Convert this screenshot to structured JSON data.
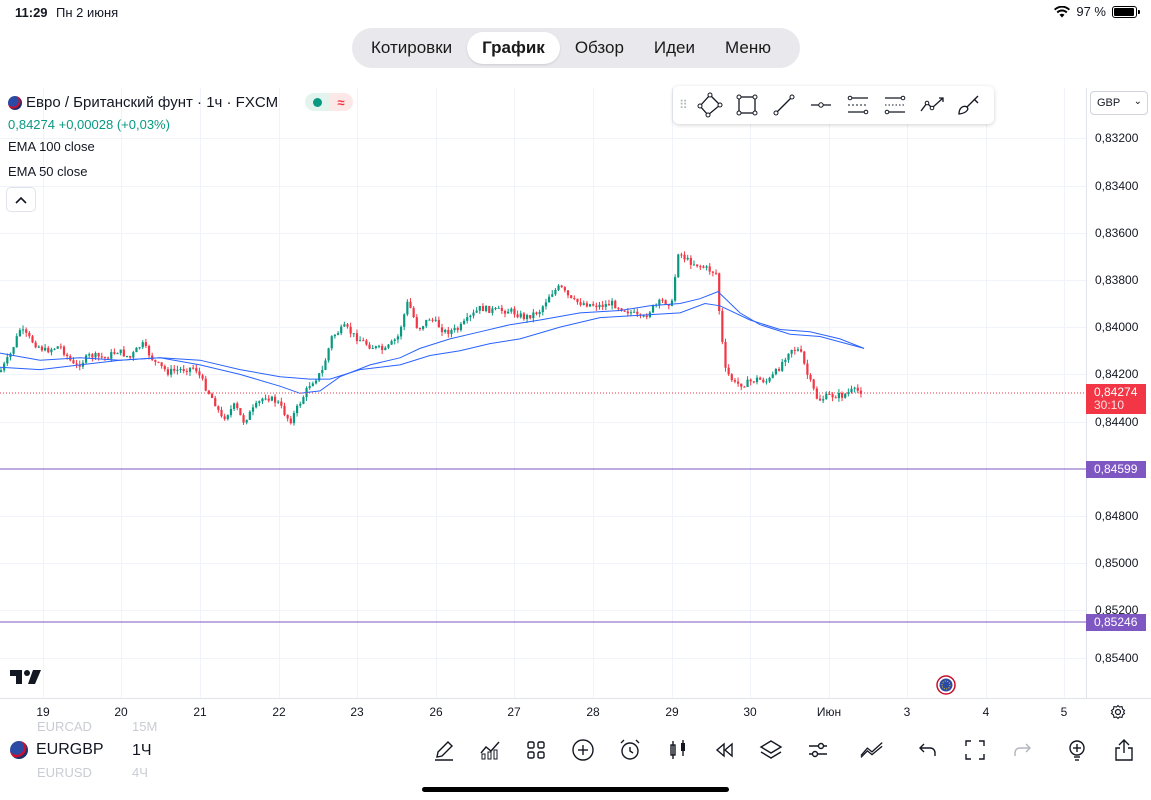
{
  "status_bar": {
    "time": "11:29",
    "date": "Пн 2 июня",
    "battery": "97 %",
    "battery_level": 0.97
  },
  "tabs": [
    {
      "label": "Котировки",
      "active": false
    },
    {
      "label": "График",
      "active": true
    },
    {
      "label": "Обзор",
      "active": false
    },
    {
      "label": "Идеи",
      "active": false
    },
    {
      "label": "Меню",
      "active": false
    }
  ],
  "legend": {
    "title": "Евро / Британский фунт · 1ч · FXCM",
    "price": "0,84274",
    "change": "+0,00028 (+0,03%)",
    "indicators": [
      "EMA 100 close",
      "EMA 50 close"
    ]
  },
  "drawing_tools": [
    "polyline-icon",
    "rectangle-icon",
    "trend-line-icon",
    "horizontal-ray-icon",
    "parallel-channel-icon",
    "regression-channel-icon",
    "path-icon",
    "brush-icon"
  ],
  "price_axis": {
    "currency": "GBP",
    "ticks": [
      "0,83200",
      "0,83400",
      "0,83600",
      "0,83800",
      "0,84000",
      "0,84200",
      "0,84400",
      "0,84800",
      "0,85000",
      "0,85200",
      "0,85400"
    ],
    "current_price": "0,84274",
    "countdown": "30:10",
    "alert_levels": [
      "0,84599",
      "0,85246"
    ]
  },
  "time_axis": {
    "ticks": [
      "19",
      "20",
      "21",
      "22",
      "23",
      "26",
      "27",
      "28",
      "29",
      "30",
      "Июн",
      "3",
      "4",
      "5"
    ]
  },
  "colors": {
    "up": "#089981",
    "down": "#f23645",
    "ema": "#2962ff",
    "alert_line": "#7e57c2",
    "last_price": "#f23645",
    "grid": "#f0f3fa"
  },
  "bottom_bar": {
    "symbol": "EURGBP",
    "interval": "1Ч",
    "ghost_prev": {
      "symbol": "EURCAD",
      "interval": "15М"
    },
    "ghost_next": {
      "symbol": "EURUSD",
      "interval": "4Ч"
    },
    "icons": [
      "pencil-icon",
      "indicators-icon",
      "apps-grid-icon",
      "add-icon",
      "alarm-icon",
      "candles-icon",
      "replay-icon",
      "layers-icon",
      "settings-sliders-icon",
      "compare-icon",
      "undo-icon",
      "fullscreen-icon",
      "redo-icon",
      "idea-icon",
      "share-icon"
    ]
  },
  "chart_data": {
    "type": "candlestick",
    "symbol": "EURGBP",
    "title": "Евро / Британский фунт · 1ч · FXCM",
    "axis_note": "price axis is inverted (larger values lower)",
    "ylim": [
      0.8315,
      0.8548
    ],
    "x_labels": [
      "19",
      "20",
      "21",
      "22",
      "23",
      "26",
      "27",
      "28",
      "29",
      "30",
      "Июн",
      "3",
      "4",
      "5"
    ],
    "anchors": [
      [
        0,
        0.8419
      ],
      [
        10,
        0.8412
      ],
      [
        20,
        0.8401
      ],
      [
        35,
        0.8407
      ],
      [
        45,
        0.841
      ],
      [
        60,
        0.8408
      ],
      [
        75,
        0.8417
      ],
      [
        90,
        0.8412
      ],
      [
        105,
        0.8413
      ],
      [
        118,
        0.841
      ],
      [
        130,
        0.8413
      ],
      [
        142,
        0.8407
      ],
      [
        155,
        0.8415
      ],
      [
        168,
        0.8419
      ],
      [
        180,
        0.8418
      ],
      [
        195,
        0.8417
      ],
      [
        205,
        0.8425
      ],
      [
        215,
        0.8432
      ],
      [
        222,
        0.8439
      ],
      [
        235,
        0.8433
      ],
      [
        243,
        0.844
      ],
      [
        255,
        0.8434
      ],
      [
        265,
        0.8429
      ],
      [
        278,
        0.8432
      ],
      [
        290,
        0.844
      ],
      [
        300,
        0.8432
      ],
      [
        310,
        0.8424
      ],
      [
        322,
        0.8419
      ],
      [
        332,
        0.8404
      ],
      [
        345,
        0.84
      ],
      [
        355,
        0.8404
      ],
      [
        370,
        0.8408
      ],
      [
        385,
        0.841
      ],
      [
        398,
        0.8404
      ],
      [
        408,
        0.8389
      ],
      [
        418,
        0.8401
      ],
      [
        430,
        0.8396
      ],
      [
        445,
        0.8402
      ],
      [
        458,
        0.8401
      ],
      [
        470,
        0.8396
      ],
      [
        480,
        0.8392
      ],
      [
        495,
        0.8393
      ],
      [
        510,
        0.8393
      ],
      [
        525,
        0.8396
      ],
      [
        540,
        0.8393
      ],
      [
        550,
        0.8386
      ],
      [
        560,
        0.8383
      ],
      [
        572,
        0.8389
      ],
      [
        585,
        0.839
      ],
      [
        600,
        0.8391
      ],
      [
        612,
        0.839
      ],
      [
        622,
        0.8392
      ],
      [
        632,
        0.8394
      ],
      [
        642,
        0.8397
      ],
      [
        652,
        0.8392
      ],
      [
        662,
        0.8389
      ],
      [
        672,
        0.839
      ],
      [
        678,
        0.8368
      ],
      [
        688,
        0.8372
      ],
      [
        700,
        0.8374
      ],
      [
        710,
        0.8376
      ],
      [
        716,
        0.8377
      ],
      [
        720,
        0.8397
      ],
      [
        725,
        0.8418
      ],
      [
        735,
        0.8424
      ],
      [
        745,
        0.8424
      ],
      [
        757,
        0.8422
      ],
      [
        768,
        0.8423
      ],
      [
        778,
        0.8418
      ],
      [
        790,
        0.8409
      ],
      [
        800,
        0.841
      ],
      [
        808,
        0.8421
      ],
      [
        818,
        0.8431
      ],
      [
        830,
        0.8429
      ],
      [
        842,
        0.8429
      ],
      [
        852,
        0.8427
      ],
      [
        864,
        0.8427
      ]
    ],
    "ema50": [
      [
        0,
        0.8417
      ],
      [
        40,
        0.8418
      ],
      [
        80,
        0.8416
      ],
      [
        120,
        0.8414
      ],
      [
        160,
        0.8413
      ],
      [
        200,
        0.8416
      ],
      [
        240,
        0.842
      ],
      [
        280,
        0.8425
      ],
      [
        300,
        0.8428
      ],
      [
        320,
        0.8427
      ],
      [
        340,
        0.8421
      ],
      [
        370,
        0.8416
      ],
      [
        400,
        0.8413
      ],
      [
        420,
        0.8409
      ],
      [
        450,
        0.8405
      ],
      [
        480,
        0.8402
      ],
      [
        510,
        0.8399
      ],
      [
        540,
        0.8397
      ],
      [
        580,
        0.8394
      ],
      [
        620,
        0.8393
      ],
      [
        650,
        0.8391
      ],
      [
        680,
        0.839
      ],
      [
        700,
        0.8388
      ],
      [
        718,
        0.8385
      ],
      [
        740,
        0.8394
      ],
      [
        760,
        0.8399
      ],
      [
        790,
        0.8403
      ],
      [
        820,
        0.8404
      ],
      [
        864,
        0.8409
      ]
    ],
    "ema100": [
      [
        0,
        0.8411
      ],
      [
        40,
        0.8414
      ],
      [
        80,
        0.8413
      ],
      [
        120,
        0.8414
      ],
      [
        160,
        0.8413
      ],
      [
        200,
        0.8414
      ],
      [
        240,
        0.8418
      ],
      [
        280,
        0.8421
      ],
      [
        310,
        0.8422
      ],
      [
        330,
        0.8422
      ],
      [
        360,
        0.8418
      ],
      [
        400,
        0.8416
      ],
      [
        430,
        0.8412
      ],
      [
        460,
        0.841
      ],
      [
        490,
        0.8407
      ],
      [
        520,
        0.8405
      ],
      [
        560,
        0.84
      ],
      [
        600,
        0.8396
      ],
      [
        640,
        0.8395
      ],
      [
        680,
        0.8394
      ],
      [
        705,
        0.839
      ],
      [
        720,
        0.8391
      ],
      [
        750,
        0.8397
      ],
      [
        780,
        0.8401
      ],
      [
        810,
        0.8402
      ],
      [
        840,
        0.8405
      ],
      [
        864,
        0.8409
      ]
    ]
  }
}
